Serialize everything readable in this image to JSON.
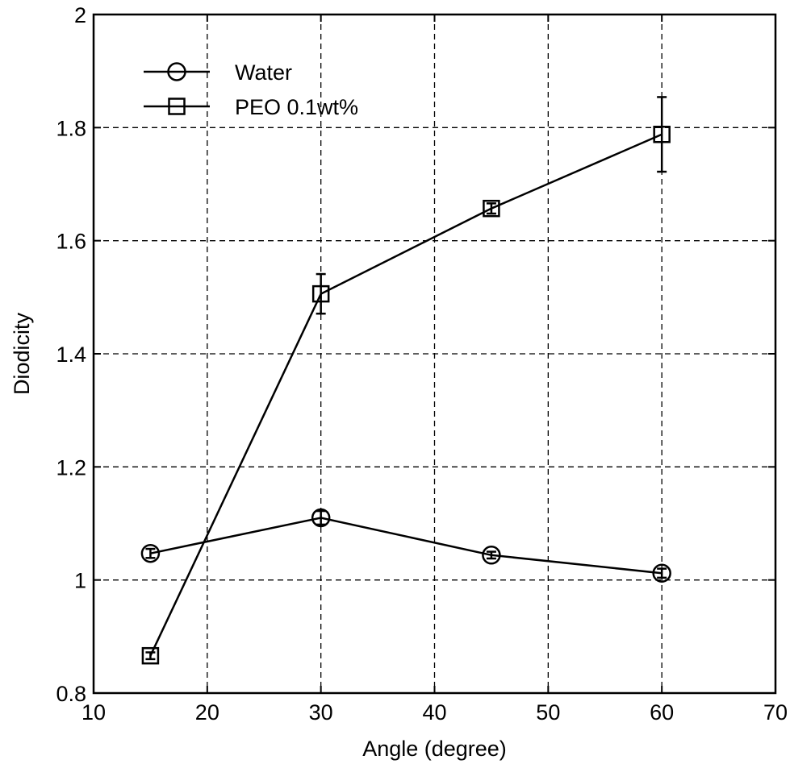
{
  "chart_data": {
    "type": "line",
    "title": "",
    "xlabel": "Angle (degree)",
    "ylabel": "Diodicity",
    "xlim": [
      10,
      70
    ],
    "ylim": [
      0.8,
      2
    ],
    "x_ticks": [
      10,
      20,
      30,
      40,
      50,
      60,
      70
    ],
    "y_ticks": [
      0.8,
      1,
      1.2,
      1.4,
      1.6,
      1.8,
      2
    ],
    "x_tick_labels": [
      "10",
      "20",
      "30",
      "40",
      "50",
      "60",
      "70"
    ],
    "y_tick_labels": [
      "0.8",
      "1",
      "1.2",
      "1.4",
      "1.6",
      "1.8",
      "2"
    ],
    "grid": true,
    "grid_style": "dashed",
    "legend_position": "top-left",
    "series": [
      {
        "name": "Water",
        "marker": "circle",
        "color": "#000000",
        "x": [
          15,
          30,
          45,
          60
        ],
        "y": [
          1.047,
          1.11,
          1.044,
          1.012
        ],
        "err": [
          0.008,
          0.012,
          0.006,
          0.008
        ]
      },
      {
        "name": "PEO 0.1wt%",
        "marker": "square",
        "color": "#000000",
        "x": [
          15,
          30,
          45,
          60
        ],
        "y": [
          0.866,
          1.506,
          1.657,
          1.788
        ],
        "err": [
          0.006,
          0.035,
          0.009,
          0.066
        ]
      }
    ]
  }
}
